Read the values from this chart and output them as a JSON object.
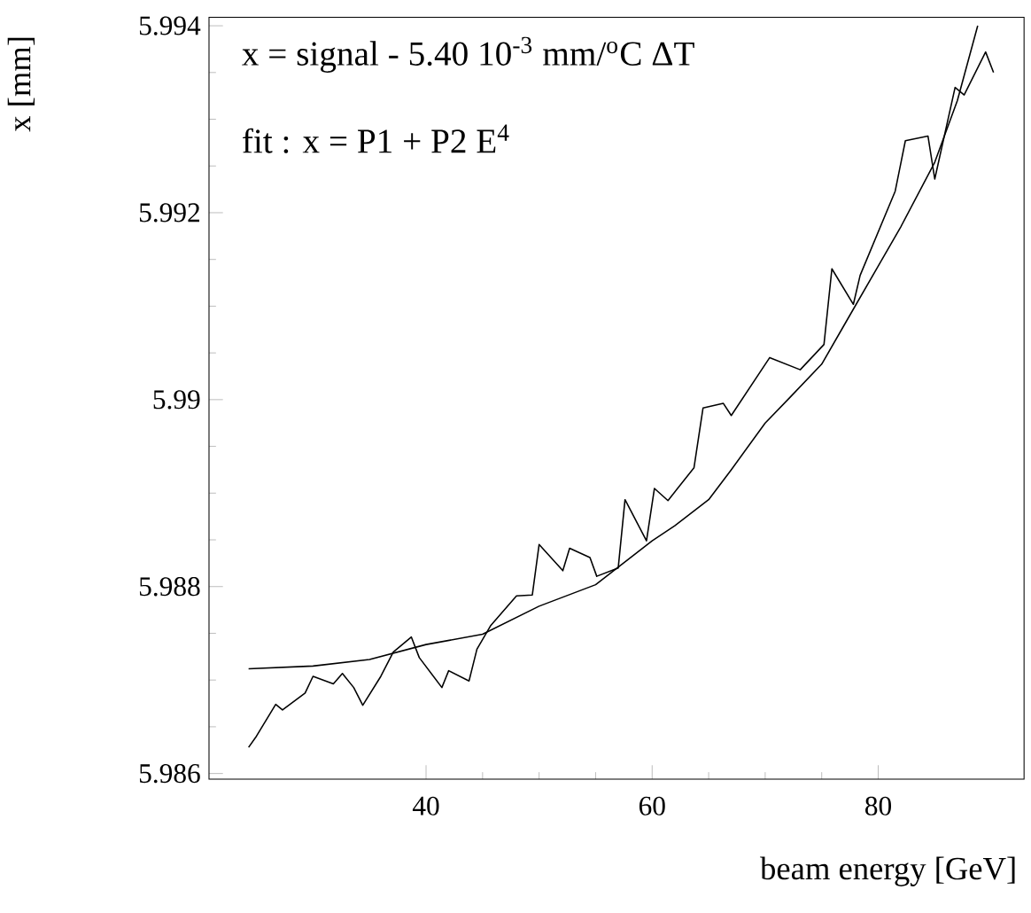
{
  "chart_data": {
    "type": "line",
    "xlabel": "beam energy [GeV]",
    "ylabel": "x [mm]",
    "xlim": [
      20.8,
      92.9
    ],
    "ylim": [
      5.98594,
      5.99409
    ],
    "xticks": [
      40,
      60,
      80
    ],
    "yticks": [
      {
        "value": 5.986,
        "label": "5.986"
      },
      {
        "value": 5.988,
        "label": "5.988"
      },
      {
        "value": 5.99,
        "label": "5.99"
      },
      {
        "value": 5.992,
        "label": "5.992"
      },
      {
        "value": 5.994,
        "label": "5.994"
      }
    ],
    "grid": false,
    "marker": "none",
    "line_style": "solid",
    "annotations": [
      "x = signal - 5.40 10$^{-3}$ mm/$^{o}$C ΔT",
      "fit : x = P1 + P2 E$^{4}$"
    ],
    "series": [
      {
        "color": "#000000",
        "x": [
          24.3,
          25.0,
          26.7,
          27.3,
          29.3,
          30.0,
          31.8,
          32.6,
          33.6,
          34.4,
          36.0,
          37.1,
          38.7,
          39.4,
          41.4,
          42.0,
          43.8,
          44.5,
          45.7,
          48.0,
          49.4,
          50.0,
          52.1,
          52.7,
          54.5,
          55.1,
          57.0,
          57.6,
          59.5,
          60.2,
          61.4,
          63.7,
          64.5,
          66.3,
          67.0,
          70.4,
          73.1,
          75.2,
          75.9,
          77.8,
          78.4,
          81.5,
          82.4,
          84.4,
          85.0,
          86.8,
          87.6,
          89.5,
          90.2
        ],
        "values": [
          5.98628,
          5.9864,
          5.98674,
          5.98668,
          5.98686,
          5.98704,
          5.98696,
          5.98707,
          5.98692,
          5.98673,
          5.98704,
          5.9873,
          5.98746,
          5.98724,
          5.98692,
          5.9871,
          5.98699,
          5.98733,
          5.98758,
          5.9879,
          5.98791,
          5.98845,
          5.98817,
          5.98841,
          5.98831,
          5.98811,
          5.9882,
          5.98893,
          5.98849,
          5.98905,
          5.98892,
          5.98927,
          5.98991,
          5.98996,
          5.98983,
          5.99045,
          5.99032,
          5.99059,
          5.9914,
          5.99102,
          5.99133,
          5.99223,
          5.99277,
          5.99282,
          5.99236,
          5.99334,
          5.99326,
          5.99372,
          5.9935
        ]
      },
      {
        "color": "#000000",
        "x": [
          24.3,
          30,
          35,
          40,
          45,
          50,
          55,
          60,
          62,
          65,
          67,
          70,
          72,
          75,
          77,
          80,
          82,
          85,
          87,
          88.8
        ],
        "values": [
          5.98712,
          5.98715,
          5.98722,
          5.98738,
          5.98749,
          5.98779,
          5.98802,
          5.98849,
          5.98865,
          5.98893,
          5.98925,
          5.98975,
          5.99,
          5.99038,
          5.9908,
          5.99143,
          5.99185,
          5.99254,
          5.9932,
          5.994
        ]
      }
    ]
  }
}
